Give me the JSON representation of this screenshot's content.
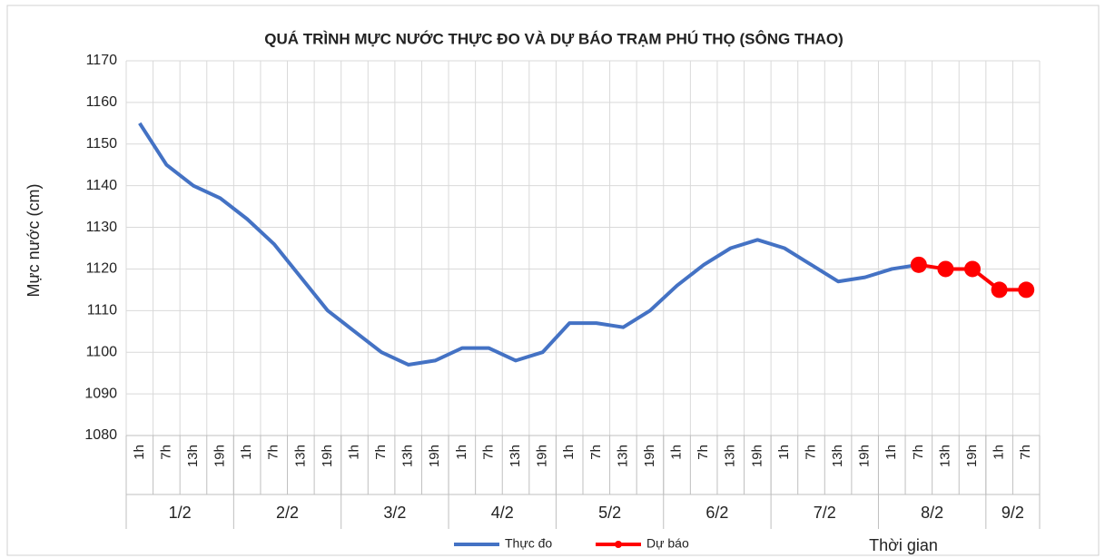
{
  "chart_data": {
    "type": "line",
    "title": "QUÁ TRÌNH MỰC NƯỚC THỰC ĐO VÀ DỰ BÁO TRẠM PHÚ THỌ (SÔNG THAO)",
    "y_label": "Mực nước (cm)",
    "x_label": "Thời gian",
    "category_groups": [
      {
        "name": "1/2",
        "categories": [
          "1h",
          "7h",
          "13h",
          "19h"
        ]
      },
      {
        "name": "2/2",
        "categories": [
          "1h",
          "7h",
          "13h",
          "19h"
        ]
      },
      {
        "name": "3/2",
        "categories": [
          "1h",
          "7h",
          "13h",
          "19h"
        ]
      },
      {
        "name": "4/2",
        "categories": [
          "1h",
          "7h",
          "13h",
          "19h"
        ]
      },
      {
        "name": "5/2",
        "categories": [
          "1h",
          "7h",
          "13h",
          "19h"
        ]
      },
      {
        "name": "6/2",
        "categories": [
          "1h",
          "7h",
          "13h",
          "19h"
        ]
      },
      {
        "name": "7/2",
        "categories": [
          "1h",
          "7h",
          "13h",
          "19h"
        ]
      },
      {
        "name": "8/2",
        "categories": [
          "1h",
          "7h",
          "13h",
          "19h"
        ]
      },
      {
        "name": "9/2",
        "categories": [
          "1h",
          "7h"
        ]
      }
    ],
    "series": [
      {
        "name": "Thực đo",
        "color": "#4472c4",
        "markers": false,
        "values": [
          1155,
          1145,
          1140,
          1137,
          1132,
          1126,
          1118,
          1110,
          1105,
          1100,
          1097,
          1098,
          1101,
          1101,
          1098,
          1100,
          1107,
          1107,
          1106,
          1110,
          1116,
          1121,
          1125,
          1127,
          1125,
          1121,
          1117,
          1118,
          1120,
          1121,
          null,
          null,
          null,
          null
        ]
      },
      {
        "name": "Dự báo",
        "color": "#ff0000",
        "markers": true,
        "values": [
          null,
          null,
          null,
          null,
          null,
          null,
          null,
          null,
          null,
          null,
          null,
          null,
          null,
          null,
          null,
          null,
          null,
          null,
          null,
          null,
          null,
          null,
          null,
          null,
          null,
          null,
          null,
          null,
          null,
          1121,
          1120,
          1120,
          1115,
          1115
        ]
      }
    ],
    "ylim": [
      1080,
      1170
    ],
    "yticks": [
      1080,
      1090,
      1100,
      1110,
      1120,
      1130,
      1140,
      1150,
      1160,
      1170
    ],
    "grid": true,
    "legend": "bottom"
  }
}
